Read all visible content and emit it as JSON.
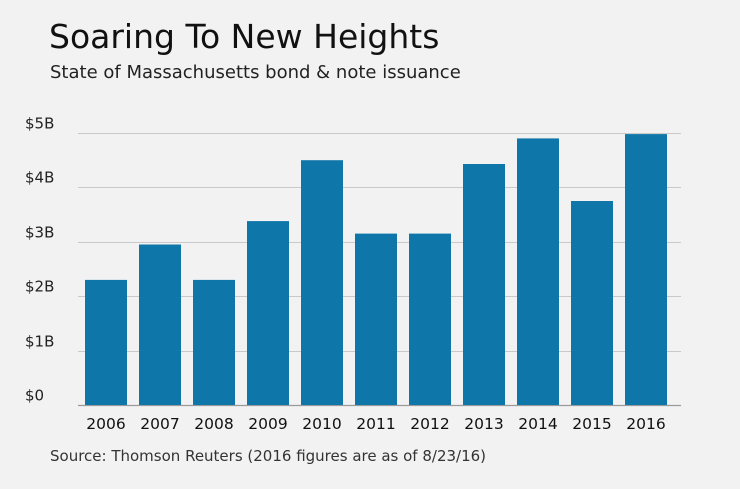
{
  "header": {
    "title": "Soaring To New Heights",
    "subtitle": "State of Massachusetts bond & note issuance"
  },
  "footer": {
    "source": "Source: Thomson Reuters (2016 figures are as of 8/23/16)"
  },
  "colors": {
    "bar": "#0e76a8",
    "grid": "#c9c9c9",
    "axis": "#9a9a9a",
    "background": "#f2f2f2"
  },
  "chart_data": {
    "type": "bar",
    "title": "Soaring To New Heights",
    "subtitle": "State of Massachusetts bond & note issuance",
    "xlabel": "",
    "ylabel": "",
    "categories": [
      "2006",
      "2007",
      "2008",
      "2009",
      "2010",
      "2011",
      "2012",
      "2013",
      "2014",
      "2015",
      "2016"
    ],
    "values": [
      2.3,
      2.95,
      2.3,
      3.38,
      4.5,
      3.15,
      3.15,
      4.43,
      4.9,
      3.75,
      4.98
    ],
    "unit": "billions of dollars",
    "ylim": [
      0,
      5
    ],
    "yticks": [
      0,
      1,
      2,
      3,
      4,
      5
    ],
    "ytick_labels": [
      "$0",
      "$1B",
      "$2B",
      "$3B",
      "$4B",
      "$5B"
    ],
    "grid": true,
    "legend": "none"
  }
}
